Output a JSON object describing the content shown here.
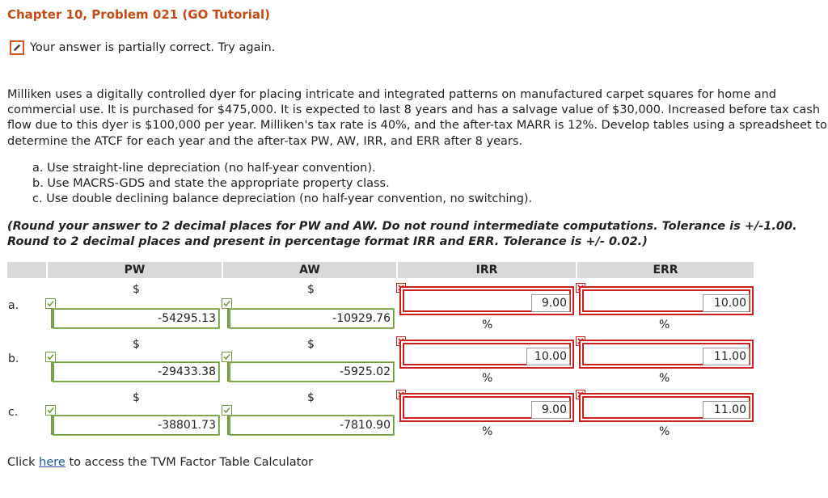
{
  "header": {
    "title": "Chapter 10, Problem 021 (GO Tutorial)",
    "status_icon": "pencil-icon",
    "status_text": "Your answer is partially correct.  Try again."
  },
  "problem": {
    "text": "Milliken uses a digitally controlled dyer for placing intricate and integrated patterns on manufactured carpet squares for home and commercial use. It is purchased for $475,000. It is expected to last 8 years and has a salvage value of $30,000. Increased before tax cash flow due to this dyer is $100,000 per year. Milliken's tax rate is 40%, and the after-tax MARR is 12%. Develop tables using a spreadsheet to determine the ATCF for each year and the after-tax PW, AW, IRR, and ERR after 8 years.",
    "parts": [
      "a. Use straight-line depreciation (no half-year convention).",
      "b. Use MACRS-GDS and state the appropriate property class.",
      "c. Use double declining balance depreciation (no half-year convention, no switching)."
    ],
    "instructions": "(Round your answer to 2 decimal places for PW and AW. Do not round intermediate computations. Tolerance is +/-1.00. Round to 2 decimal places and present in percentage format IRR and ERR. Tolerance is +/- 0.02.)"
  },
  "table": {
    "headers": [
      "PW",
      "AW",
      "IRR",
      "ERR"
    ],
    "currency_symbol": "$",
    "percent_symbol": "%",
    "rows": [
      {
        "label": "a.",
        "pw": "-54295.13",
        "aw": "-10929.76",
        "irr": "9.00",
        "err": "10.00",
        "pw_status": "correct",
        "aw_status": "correct",
        "irr_status": "incorrect",
        "err_status": "incorrect"
      },
      {
        "label": "b.",
        "pw": "-29433.38",
        "aw": "-5925.02",
        "irr": "10.00",
        "err": "11.00",
        "pw_status": "correct",
        "aw_status": "correct",
        "irr_status": "incorrect",
        "err_status": "incorrect"
      },
      {
        "label": "c.",
        "pw": "-38801.73",
        "aw": "-7810.90",
        "irr": "9.00",
        "err": "11.00",
        "pw_status": "correct",
        "aw_status": "correct",
        "irr_status": "incorrect",
        "err_status": "incorrect"
      }
    ]
  },
  "footer": {
    "prefix": "Click ",
    "link_text": "here",
    "suffix": " to access the TVM Factor Table Calculator"
  },
  "colors": {
    "title": "#c54a14",
    "correct": "#6c9a3c",
    "incorrect": "#cc1f1f",
    "header_bg": "#d9d9d9",
    "link": "#1a5a9a"
  }
}
